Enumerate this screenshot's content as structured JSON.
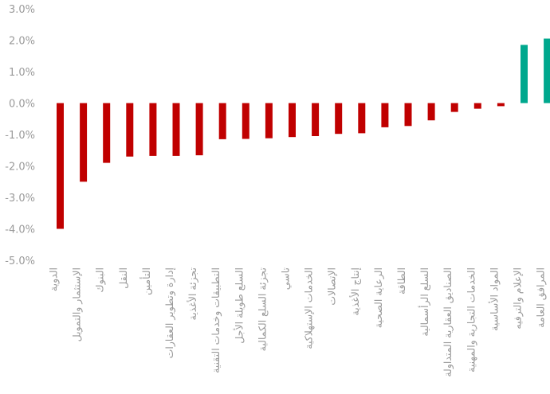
{
  "chart_data": {
    "type": "bar",
    "title": "",
    "xlabel": "",
    "ylabel": "",
    "ylim": [
      -5.0,
      3.0
    ],
    "y_ticks": [
      "3.0%",
      "2.0%",
      "1.0%",
      "0.0%",
      "-1.0%",
      "-2.0%",
      "-3.0%",
      "-4.0%",
      "-5.0%"
    ],
    "y_tick_values": [
      3,
      2,
      1,
      0,
      -1,
      -2,
      -3,
      -4,
      -5
    ],
    "grid": false,
    "colors": {
      "negative": "#c00000",
      "positive": "#00a88e"
    },
    "categories": [
      "الدوية",
      "الإستثمار والتمويل",
      "البنوك",
      "النقل",
      "التأمين",
      "إدارة وتطوير العقارات",
      "تجزئة الأغذية",
      "التطبيقات وخدمات التقنية",
      "السلع طويلة الأجل",
      "تجزئة السلع الكمالية",
      "تاسي",
      "الخدمات الإستهلاكية",
      "الإتصالات",
      "إنتاج الأغذية",
      "الرعاية الصحية",
      "الطاقة",
      "السلع الرأسمالية",
      "الصناديق العقارية المتداولة",
      "الخدمات التجارية والمهنية",
      "المواد الأساسية",
      "الإعلام والترفيه",
      "المرافق العامة"
    ],
    "values": [
      -4.0,
      -2.5,
      -1.9,
      -1.7,
      -1.68,
      -1.68,
      -1.66,
      -1.15,
      -1.14,
      -1.12,
      -1.08,
      -1.05,
      -0.98,
      -0.96,
      -0.77,
      -0.73,
      -0.55,
      -0.28,
      -0.18,
      -0.1,
      1.85,
      2.05
    ]
  }
}
